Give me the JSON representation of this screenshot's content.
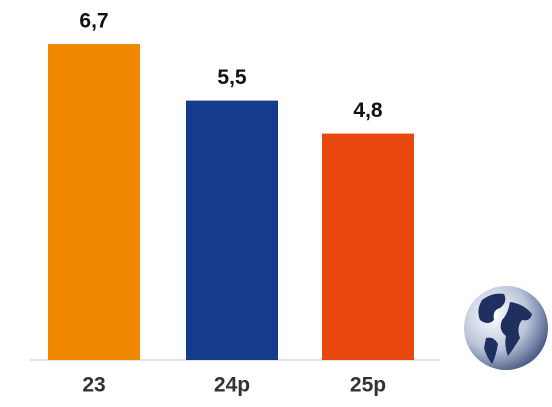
{
  "chart_data": {
    "type": "bar",
    "categories": [
      "23",
      "24p",
      "25p"
    ],
    "values": [
      6.7,
      5.5,
      4.8
    ],
    "value_labels": [
      "6,7",
      "5,5",
      "4,8"
    ],
    "colors": [
      "#f08800",
      "#163b8c",
      "#e8470e"
    ]
  }
}
